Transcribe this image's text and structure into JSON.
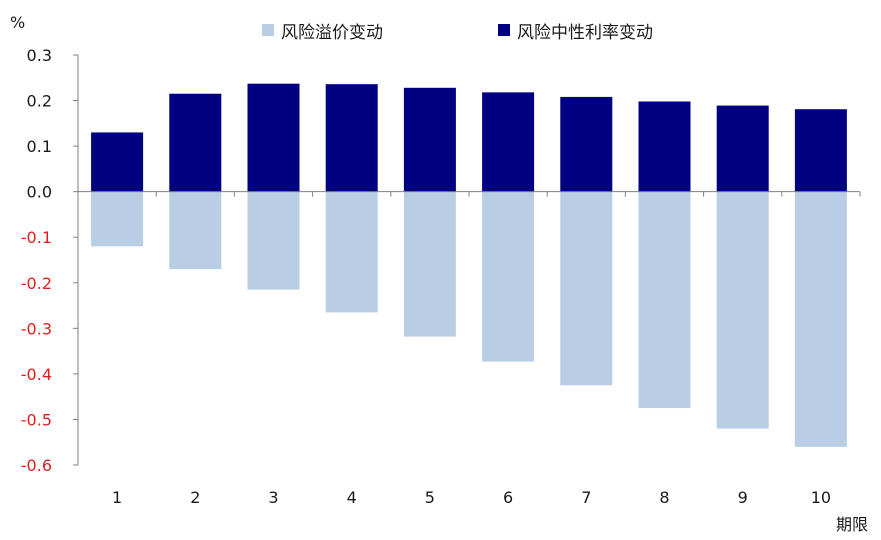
{
  "chart_data": {
    "type": "bar",
    "y_unit_label": "%",
    "x_unit_label": "期限",
    "categories": [
      "1",
      "2",
      "3",
      "4",
      "5",
      "6",
      "7",
      "8",
      "9",
      "10"
    ],
    "series": [
      {
        "name": "风险溢价变动",
        "color": "#b9cde4",
        "values": [
          -0.12,
          -0.17,
          -0.215,
          -0.265,
          -0.318,
          -0.373,
          -0.425,
          -0.475,
          -0.52,
          -0.56
        ]
      },
      {
        "name": "风险中性利率变动",
        "color": "#000080",
        "values": [
          0.13,
          0.215,
          0.237,
          0.236,
          0.228,
          0.218,
          0.208,
          0.198,
          0.189,
          0.181
        ]
      }
    ],
    "ylim": [
      -0.6,
      0.3
    ],
    "yticks": [
      "0.3",
      "0.2",
      "0.1",
      "0.0",
      "-0.1",
      "-0.2",
      "-0.3",
      "-0.4",
      "-0.5",
      "-0.6"
    ],
    "negative_tick_color": "#e0201f",
    "legend_position": "top",
    "grid": false
  }
}
